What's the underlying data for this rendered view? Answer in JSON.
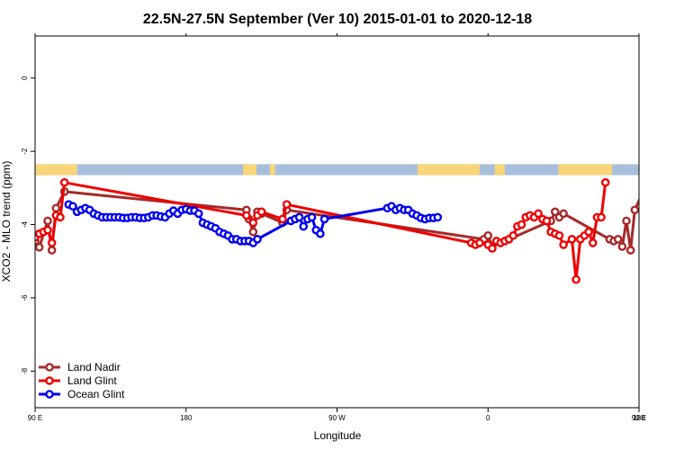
{
  "chart_data": {
    "type": "line",
    "title": "22.5N-27.5N September (Ver 10)   2015-01-01 to 2020-12-18",
    "xlabel": "Longitude",
    "ylabel": "XCO2 - MLO trend (ppm)",
    "xlim": [
      90,
      450
    ],
    "ylim": [
      -9,
      1.15
    ],
    "x_ticks": [
      {
        "value": 90,
        "label": "90 E"
      },
      {
        "value": 180,
        "label": "180"
      },
      {
        "value": 270,
        "label": "90 W"
      },
      {
        "value": 360,
        "label": "0"
      },
      {
        "value": 450,
        "label": "90 E"
      }
    ],
    "x_ticks_top": [
      90,
      180,
      270,
      360,
      450,
      540
    ],
    "x_tick_last_label": "180",
    "y_ticks": [
      {
        "value": 0,
        "label": "0"
      },
      {
        "value": -2,
        "label": "-2"
      },
      {
        "value": -4,
        "label": "-4"
      },
      {
        "value": -6,
        "label": "-6"
      },
      {
        "value": -8,
        "label": "-8"
      }
    ],
    "grid": false,
    "legend_position": "bottom-left",
    "land_ocean_strip": {
      "y_range": [
        -2.65,
        -2.35
      ],
      "ocean_color": "#a8bfdc",
      "land_color": "#f9d67a",
      "land_segments": [
        [
          90,
          115
        ],
        [
          214,
          222
        ],
        [
          230,
          233
        ],
        [
          318,
          355
        ],
        [
          364,
          370
        ],
        [
          402,
          434
        ],
        [
          452,
          462
        ]
      ]
    },
    "series": [
      {
        "name": "Land Nadir",
        "color": "#a52a2a",
        "points": [
          [
            90,
            -4.45
          ],
          [
            92.5,
            -4.62
          ],
          [
            97.5,
            -3.9
          ],
          [
            100,
            -4.7
          ],
          [
            102.5,
            -3.55
          ],
          [
            107.5,
            -3.1
          ],
          [
            216,
            -3.6
          ],
          [
            217.5,
            -3.85
          ],
          [
            220,
            -4.2
          ],
          [
            222.5,
            -3.65
          ],
          [
            225,
            -3.7
          ],
          [
            237.5,
            -3.95
          ],
          [
            240,
            -3.6
          ],
          [
            357.5,
            -4.4
          ],
          [
            360,
            -4.3
          ],
          [
            362.5,
            -4.6
          ],
          [
            397.5,
            -3.9
          ],
          [
            400,
            -3.65
          ],
          [
            402.5,
            -3.8
          ],
          [
            405,
            -3.7
          ],
          [
            432.5,
            -4.4
          ],
          [
            435,
            -4.45
          ],
          [
            437.5,
            -4.4
          ],
          [
            440,
            -4.6
          ],
          [
            442.5,
            -3.9
          ],
          [
            445,
            -4.7
          ],
          [
            447.5,
            -3.6
          ],
          [
            452.5,
            -3.1
          ]
        ]
      },
      {
        "name": "Land Glint",
        "color": "#ee0000",
        "points": [
          [
            90,
            -4.35
          ],
          [
            92.5,
            -4.25
          ],
          [
            95,
            -4.2
          ],
          [
            97.5,
            -4.15
          ],
          [
            100,
            -4.5
          ],
          [
            102.5,
            -3.75
          ],
          [
            105,
            -3.8
          ],
          [
            107.5,
            -2.85
          ],
          [
            216,
            -3.75
          ],
          [
            220,
            -3.95
          ],
          [
            222.5,
            -3.75
          ],
          [
            225,
            -3.65
          ],
          [
            237.5,
            -3.85
          ],
          [
            240,
            -3.45
          ],
          [
            350,
            -4.5
          ],
          [
            352.5,
            -4.55
          ],
          [
            355,
            -4.5
          ],
          [
            360,
            -4.55
          ],
          [
            362.5,
            -4.65
          ],
          [
            365,
            -4.45
          ],
          [
            367.5,
            -4.5
          ],
          [
            370,
            -4.45
          ],
          [
            372.5,
            -4.4
          ],
          [
            375,
            -4.3
          ],
          [
            377.5,
            -4.05
          ],
          [
            380,
            -4.0
          ],
          [
            382.5,
            -3.8
          ],
          [
            385,
            -3.75
          ],
          [
            387.5,
            -3.8
          ],
          [
            390,
            -3.7
          ],
          [
            392.5,
            -3.85
          ],
          [
            395,
            -3.9
          ],
          [
            397.5,
            -4.2
          ],
          [
            400,
            -4.25
          ],
          [
            402.5,
            -4.3
          ],
          [
            405,
            -4.55
          ],
          [
            410,
            -4.4
          ],
          [
            412.5,
            -5.5
          ],
          [
            415,
            -4.4
          ],
          [
            417.5,
            -4.3
          ],
          [
            420,
            -4.2
          ],
          [
            422.5,
            -4.5
          ],
          [
            425,
            -3.8
          ],
          [
            427.5,
            -3.8
          ],
          [
            430,
            -2.85
          ]
        ]
      },
      {
        "name": "Ocean Glint",
        "color": "#0000ee",
        "points": [
          [
            110,
            -3.45
          ],
          [
            112.5,
            -3.5
          ],
          [
            115,
            -3.65
          ],
          [
            117.5,
            -3.6
          ],
          [
            120,
            -3.55
          ],
          [
            122.5,
            -3.6
          ],
          [
            125,
            -3.7
          ],
          [
            127.5,
            -3.75
          ],
          [
            130,
            -3.8
          ],
          [
            132.5,
            -3.8
          ],
          [
            135,
            -3.8
          ],
          [
            137.5,
            -3.8
          ],
          [
            140,
            -3.8
          ],
          [
            142.5,
            -3.82
          ],
          [
            145,
            -3.82
          ],
          [
            147.5,
            -3.8
          ],
          [
            150,
            -3.8
          ],
          [
            152.5,
            -3.82
          ],
          [
            155,
            -3.82
          ],
          [
            157.5,
            -3.8
          ],
          [
            160,
            -3.75
          ],
          [
            162.5,
            -3.75
          ],
          [
            165,
            -3.78
          ],
          [
            167.5,
            -3.8
          ],
          [
            170,
            -3.7
          ],
          [
            172.5,
            -3.62
          ],
          [
            175,
            -3.7
          ],
          [
            177.5,
            -3.6
          ],
          [
            180,
            -3.58
          ],
          [
            182.5,
            -3.62
          ],
          [
            185,
            -3.62
          ],
          [
            187.5,
            -3.7
          ],
          [
            190,
            -3.95
          ],
          [
            192.5,
            -4.0
          ],
          [
            195,
            -4.05
          ],
          [
            197.5,
            -4.1
          ],
          [
            200,
            -4.2
          ],
          [
            202.5,
            -4.25
          ],
          [
            205,
            -4.3
          ],
          [
            207.5,
            -4.4
          ],
          [
            210,
            -4.4
          ],
          [
            212.5,
            -4.45
          ],
          [
            215,
            -4.45
          ],
          [
            217.5,
            -4.45
          ],
          [
            220,
            -4.5
          ],
          [
            222.5,
            -4.4
          ],
          [
            242.5,
            -3.9
          ],
          [
            245,
            -3.85
          ],
          [
            247.5,
            -3.8
          ],
          [
            250,
            -4.05
          ],
          [
            252.5,
            -3.85
          ],
          [
            255,
            -3.8
          ],
          [
            257.5,
            -4.15
          ],
          [
            260,
            -4.25
          ],
          [
            262.5,
            -3.85
          ],
          [
            300,
            -3.55
          ],
          [
            302.5,
            -3.5
          ],
          [
            305,
            -3.6
          ],
          [
            307.5,
            -3.55
          ],
          [
            310,
            -3.6
          ],
          [
            312.5,
            -3.6
          ],
          [
            315,
            -3.7
          ],
          [
            317.5,
            -3.75
          ],
          [
            320,
            -3.82
          ],
          [
            322.5,
            -3.85
          ],
          [
            325,
            -3.82
          ],
          [
            327.5,
            -3.82
          ],
          [
            330,
            -3.8
          ]
        ]
      }
    ]
  }
}
